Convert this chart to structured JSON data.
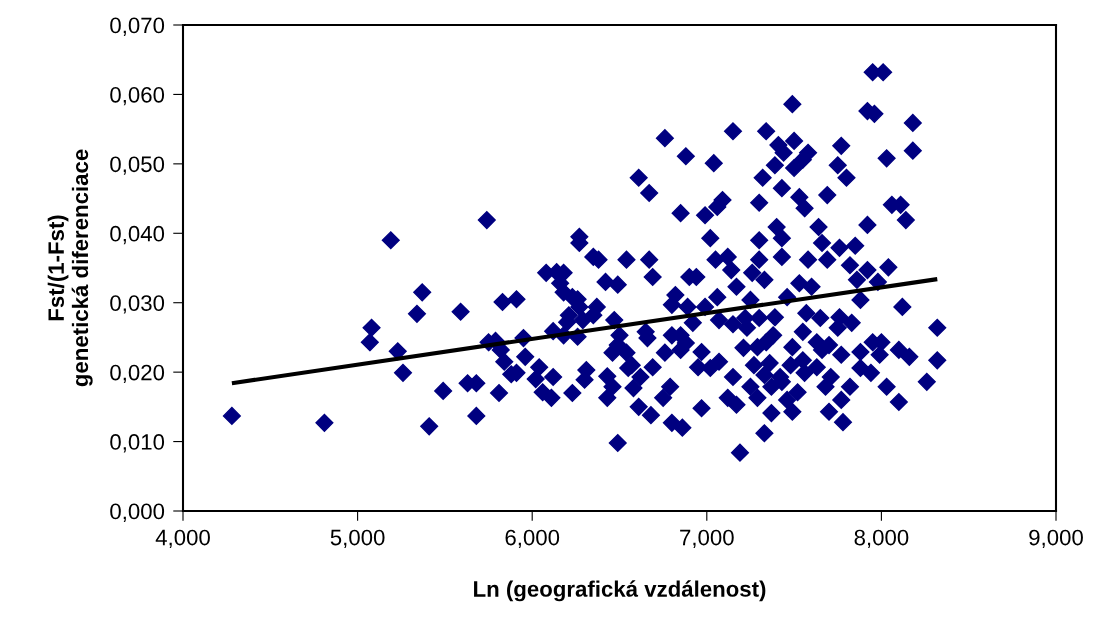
{
  "chart_data": {
    "type": "scatter",
    "xlabel": "Ln (geografická vzdálenost)",
    "ylabel": "Fst/(1-Fst)\ngenetická diferenciace",
    "xlim": [
      4,
      9
    ],
    "ylim": [
      0,
      0.07
    ],
    "xticks": [
      {
        "value": 4,
        "label": "4,000"
      },
      {
        "value": 5,
        "label": "5,000"
      },
      {
        "value": 6,
        "label": "6,000"
      },
      {
        "value": 7,
        "label": "7,000"
      },
      {
        "value": 8,
        "label": "8,000"
      },
      {
        "value": 9,
        "label": "9,000"
      }
    ],
    "yticks": [
      {
        "value": 0,
        "label": "0,000"
      },
      {
        "value": 0.01,
        "label": "0,010"
      },
      {
        "value": 0.02,
        "label": "0,020"
      },
      {
        "value": 0.03,
        "label": "0,030"
      },
      {
        "value": 0.04,
        "label": "0,040"
      },
      {
        "value": 0.05,
        "label": "0,050"
      },
      {
        "value": 0.06,
        "label": "0,060"
      },
      {
        "value": 0.07,
        "label": "0,070"
      }
    ],
    "grid": false,
    "legend": false,
    "marker": "diamond",
    "series": [
      {
        "color": "#000080",
        "x": [
          4.28,
          4.81,
          5.19,
          5.08,
          5.07,
          5.23,
          5.26,
          5.37,
          5.34,
          5.41,
          5.49,
          5.59,
          5.63,
          5.68,
          5.68,
          5.74,
          5.75,
          5.79,
          5.82,
          5.84,
          5.81,
          5.83,
          5.91,
          5.88,
          5.91,
          5.96,
          5.95,
          6.02,
          6.04,
          6.06,
          6.11,
          6.12,
          6.08,
          6.14,
          6.18,
          6.16,
          6.18,
          6.23,
          6.26,
          6.27,
          6.21,
          6.2,
          6.29,
          6.12,
          6.18,
          6.26,
          6.23,
          6.27,
          6.27,
          6.35,
          6.38,
          6.42,
          6.49,
          6.54,
          6.37,
          6.35,
          6.31,
          6.3,
          6.43,
          6.46,
          6.43,
          6.49,
          6.47,
          6.5,
          6.49,
          6.46,
          6.54,
          6.55,
          7.95,
          8.01,
          7.92,
          7.96,
          7.49,
          8.18,
          8.18,
          7.15,
          7.34,
          6.76,
          6.88,
          7.04,
          7.41,
          7.5,
          7.44,
          7.58,
          7.55,
          7.39,
          7.5,
          7.77,
          7.75,
          7.8,
          8.03,
          7.32,
          7.43,
          7.53,
          7.56,
          7.69,
          6.61,
          6.67,
          6.85,
          6.99,
          7.06,
          7.09,
          7.3,
          8.06,
          8.11,
          8.14,
          7.92,
          7.4,
          7.43,
          7.64,
          7.66,
          7.02,
          7.3,
          7.76,
          7.85,
          6.67,
          6.69,
          7.05,
          7.12,
          7.3,
          7.43,
          7.58,
          7.69,
          7.82,
          7.92,
          8.04,
          7.98,
          7.86,
          7.14,
          6.9,
          6.94,
          7.26,
          7.33,
          7.17,
          7.53,
          7.6,
          6.82,
          7.06,
          7.46,
          7.25,
          7.88,
          6.8,
          6.89,
          6.99,
          8.12,
          7.57,
          7.76,
          7.07,
          7.22,
          7.3,
          7.39,
          7.65,
          7.83,
          8.32,
          6.92,
          7.15,
          6.65,
          7.55,
          7.23,
          7.75,
          6.85,
          7.38,
          6.66,
          6.8,
          6.88,
          7.34,
          7.63,
          7.7,
          7.95,
          8.0,
          6.76,
          6.85,
          6.97,
          7.21,
          7.29,
          7.49,
          7.66,
          7.88,
          8.1,
          7.77,
          8.32,
          8.16,
          7.99,
          6.57,
          6.69,
          6.95,
          7.02,
          7.07,
          7.27,
          7.36,
          7.48,
          7.55,
          7.63,
          7.88,
          6.62,
          7.15,
          7.33,
          7.42,
          7.56,
          7.71,
          7.94,
          8.26,
          6.58,
          6.79,
          7.25,
          7.37,
          7.43,
          7.68,
          7.82,
          8.03,
          6.75,
          7.12,
          7.29,
          7.52,
          7.77,
          8.1,
          6.61,
          6.68,
          6.97,
          7.17,
          7.37,
          7.49,
          7.46,
          7.7,
          7.78,
          6.8,
          6.86,
          7.33,
          7.19
        ],
        "values": [
          0.0137,
          0.0127,
          0.039,
          0.0264,
          0.0243,
          0.023,
          0.0199,
          0.0315,
          0.0284,
          0.0122,
          0.0173,
          0.0287,
          0.0184,
          0.0184,
          0.0137,
          0.0419,
          0.0243,
          0.0245,
          0.0232,
          0.0215,
          0.017,
          0.0301,
          0.0305,
          0.0197,
          0.0199,
          0.0222,
          0.0249,
          0.019,
          0.0207,
          0.0171,
          0.0163,
          0.0193,
          0.0343,
          0.0344,
          0.0343,
          0.0328,
          0.0315,
          0.0308,
          0.0305,
          0.0294,
          0.0282,
          0.0272,
          0.0275,
          0.0259,
          0.0253,
          0.0251,
          0.017,
          0.0395,
          0.0386,
          0.0366,
          0.0362,
          0.033,
          0.0326,
          0.0362,
          0.0294,
          0.0282,
          0.0203,
          0.0189,
          0.0194,
          0.0179,
          0.0163,
          0.0098,
          0.0275,
          0.0253,
          0.0239,
          0.0228,
          0.0228,
          0.0206,
          0.0632,
          0.0632,
          0.0576,
          0.0572,
          0.0586,
          0.0559,
          0.0519,
          0.0547,
          0.0547,
          0.0537,
          0.0511,
          0.0501,
          0.0527,
          0.0533,
          0.0516,
          0.0516,
          0.0506,
          0.0498,
          0.0494,
          0.0526,
          0.0498,
          0.048,
          0.0508,
          0.048,
          0.0465,
          0.0452,
          0.0436,
          0.0455,
          0.048,
          0.0458,
          0.0429,
          0.0426,
          0.0438,
          0.0448,
          0.0444,
          0.0441,
          0.0441,
          0.0419,
          0.0412,
          0.0409,
          0.0393,
          0.0409,
          0.0386,
          0.0393,
          0.039,
          0.0379,
          0.0382,
          0.0362,
          0.0337,
          0.0362,
          0.0366,
          0.0362,
          0.0366,
          0.0362,
          0.0362,
          0.0354,
          0.0347,
          0.0351,
          0.033,
          0.0333,
          0.0347,
          0.0337,
          0.0337,
          0.0343,
          0.0333,
          0.0323,
          0.0328,
          0.0323,
          0.0311,
          0.0308,
          0.0308,
          0.0304,
          0.0304,
          0.0297,
          0.0294,
          0.0294,
          0.0294,
          0.0285,
          0.0279,
          0.0275,
          0.0278,
          0.0278,
          0.0279,
          0.0278,
          0.0271,
          0.0264,
          0.0271,
          0.0269,
          0.0258,
          0.0258,
          0.0264,
          0.0264,
          0.0253,
          0.0253,
          0.0249,
          0.0253,
          0.0242,
          0.0243,
          0.0243,
          0.0239,
          0.0243,
          0.0243,
          0.0228,
          0.0232,
          0.0229,
          0.0235,
          0.0236,
          0.0236,
          0.0232,
          0.0229,
          0.0232,
          0.0225,
          0.0217,
          0.0222,
          0.0225,
          0.021,
          0.0207,
          0.0207,
          0.0206,
          0.0215,
          0.021,
          0.0213,
          0.021,
          0.0217,
          0.0207,
          0.0206,
          0.0193,
          0.0193,
          0.0196,
          0.0193,
          0.0199,
          0.0193,
          0.0199,
          0.0186,
          0.0177,
          0.0179,
          0.0179,
          0.0179,
          0.0186,
          0.0179,
          0.0179,
          0.0179,
          0.0163,
          0.0163,
          0.0163,
          0.0171,
          0.016,
          0.0157,
          0.015,
          0.0138,
          0.0148,
          0.0153,
          0.0141,
          0.0143,
          0.016,
          0.0143,
          0.0128,
          0.0127,
          0.012,
          0.0112,
          0.0084
        ]
      },
      {
        "type": "line",
        "color": "#000000",
        "marker": "none",
        "line_style": "solid",
        "x": [
          4.28,
          8.32
        ],
        "values": [
          0.0184,
          0.0334
        ]
      }
    ]
  }
}
